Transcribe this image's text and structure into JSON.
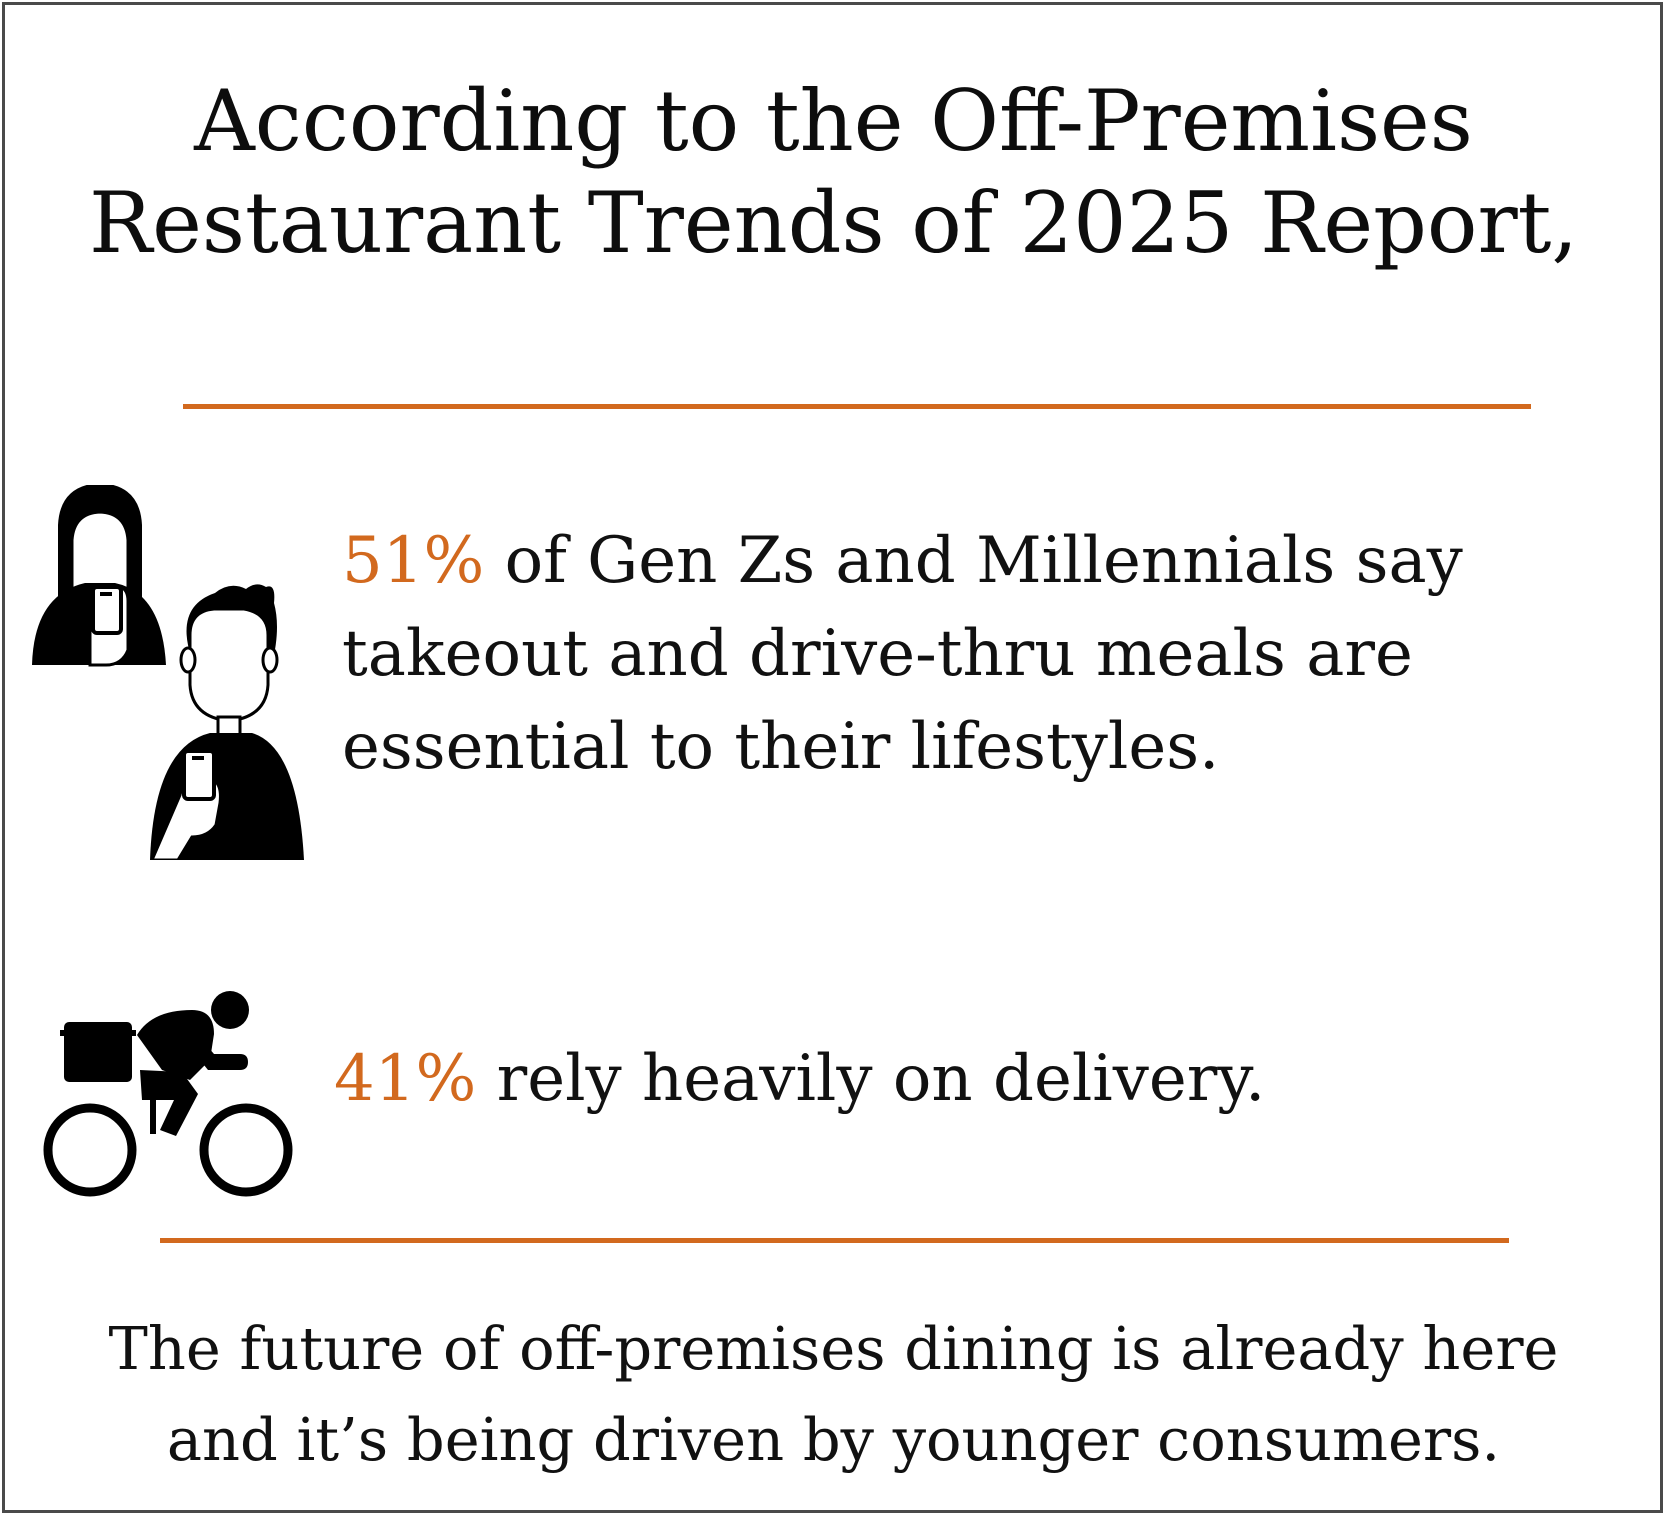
{
  "header": {
    "title_line_1": "According to the Off-Premises",
    "title_line_2": "Restaurant Trends of 2025 Report,"
  },
  "stats": [
    {
      "icon": "young-people-with-phones-icon",
      "percent": "51%",
      "text": "of Gen Zs and Millennials say takeout and drive-thru meals are essential to their lifestyles."
    },
    {
      "icon": "delivery-cyclist-icon",
      "percent": "41%",
      "text": "rely heavily on delivery."
    }
  ],
  "footer": {
    "line_1": "The future of off-premises dining is already here",
    "line_2": "and it’s being driven by younger consumers."
  },
  "colors": {
    "accent": "#d2691e",
    "text": "#111111",
    "border": "#4a4a4a",
    "background": "#ffffff"
  }
}
